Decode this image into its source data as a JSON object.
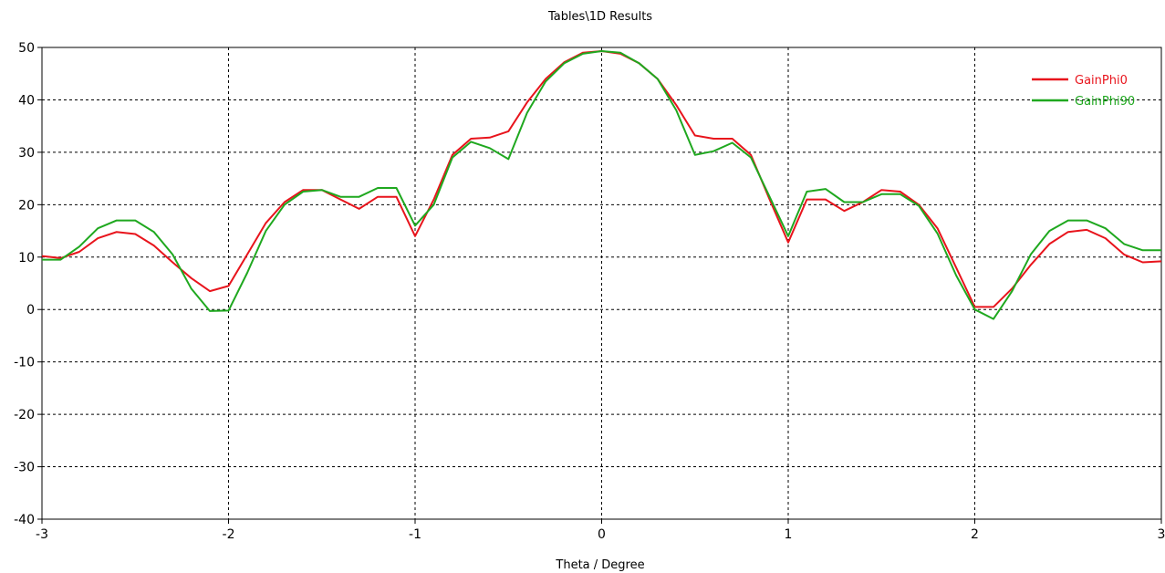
{
  "chart_data": {
    "type": "line",
    "title": "Tables\\1D Results",
    "xlabel": "Theta / Degree",
    "ylabel": "",
    "xlim": [
      -3,
      3
    ],
    "ylim": [
      -40,
      50
    ],
    "xticks": [
      -3,
      -2,
      -1,
      0,
      1,
      2,
      3
    ],
    "yticks": [
      -40,
      -30,
      -20,
      -10,
      0,
      10,
      20,
      30,
      40,
      50
    ],
    "grid": true,
    "legend": "top-right",
    "series": [
      {
        "name": "GainPhi0",
        "color": "#e8141c",
        "points": [
          [
            -3.0,
            10.2
          ],
          [
            -2.9,
            9.8
          ],
          [
            -2.8,
            11.0
          ],
          [
            -2.7,
            13.6
          ],
          [
            -2.6,
            14.8
          ],
          [
            -2.5,
            14.4
          ],
          [
            -2.4,
            12.2
          ],
          [
            -2.3,
            9.0
          ],
          [
            -2.2,
            6.0
          ],
          [
            -2.1,
            3.5
          ],
          [
            -2.0,
            4.5
          ],
          [
            -1.9,
            10.5
          ],
          [
            -1.8,
            16.5
          ],
          [
            -1.7,
            20.5
          ],
          [
            -1.6,
            22.8
          ],
          [
            -1.5,
            22.8
          ],
          [
            -1.4,
            21.0
          ],
          [
            -1.3,
            19.2
          ],
          [
            -1.2,
            21.5
          ],
          [
            -1.1,
            21.5
          ],
          [
            -1.0,
            14.0
          ],
          [
            -0.9,
            21.0
          ],
          [
            -0.8,
            29.5
          ],
          [
            -0.7,
            32.6
          ],
          [
            -0.6,
            32.8
          ],
          [
            -0.5,
            34.0
          ],
          [
            -0.4,
            39.5
          ],
          [
            -0.3,
            44.0
          ],
          [
            -0.2,
            47.2
          ],
          [
            -0.1,
            49.0
          ],
          [
            0.0,
            49.3
          ],
          [
            0.1,
            48.8
          ],
          [
            0.2,
            47.0
          ],
          [
            0.3,
            44.0
          ],
          [
            0.4,
            39.0
          ],
          [
            0.5,
            33.2
          ],
          [
            0.6,
            32.6
          ],
          [
            0.7,
            32.6
          ],
          [
            0.8,
            29.5
          ],
          [
            0.9,
            21.0
          ],
          [
            1.0,
            12.8
          ],
          [
            1.1,
            21.0
          ],
          [
            1.2,
            21.0
          ],
          [
            1.3,
            18.8
          ],
          [
            1.4,
            20.5
          ],
          [
            1.5,
            22.8
          ],
          [
            1.6,
            22.5
          ],
          [
            1.7,
            20.0
          ],
          [
            1.8,
            15.5
          ],
          [
            1.9,
            8.0
          ],
          [
            2.0,
            0.5
          ],
          [
            2.1,
            0.5
          ],
          [
            2.2,
            4.0
          ],
          [
            2.3,
            8.5
          ],
          [
            2.4,
            12.5
          ],
          [
            2.5,
            14.8
          ],
          [
            2.6,
            15.2
          ],
          [
            2.7,
            13.6
          ],
          [
            2.8,
            10.5
          ],
          [
            2.9,
            9.0
          ],
          [
            3.0,
            9.2
          ]
        ]
      },
      {
        "name": "GainPhi90",
        "color": "#1fa81f",
        "points": [
          [
            -3.0,
            9.5
          ],
          [
            -2.9,
            9.5
          ],
          [
            -2.8,
            12.0
          ],
          [
            -2.7,
            15.5
          ],
          [
            -2.6,
            17.0
          ],
          [
            -2.5,
            17.0
          ],
          [
            -2.4,
            14.8
          ],
          [
            -2.3,
            10.5
          ],
          [
            -2.2,
            4.0
          ],
          [
            -2.1,
            -0.3
          ],
          [
            -2.0,
            -0.2
          ],
          [
            -1.9,
            7.0
          ],
          [
            -1.8,
            15.0
          ],
          [
            -1.7,
            20.0
          ],
          [
            -1.6,
            22.5
          ],
          [
            -1.5,
            22.8
          ],
          [
            -1.4,
            21.5
          ],
          [
            -1.3,
            21.5
          ],
          [
            -1.2,
            23.2
          ],
          [
            -1.1,
            23.2
          ],
          [
            -1.0,
            16.0
          ],
          [
            -0.9,
            20.0
          ],
          [
            -0.8,
            29.0
          ],
          [
            -0.7,
            32.0
          ],
          [
            -0.6,
            30.8
          ],
          [
            -0.5,
            28.7
          ],
          [
            -0.4,
            37.5
          ],
          [
            -0.3,
            43.5
          ],
          [
            -0.2,
            47.0
          ],
          [
            -0.1,
            48.8
          ],
          [
            0.0,
            49.3
          ],
          [
            0.1,
            49.0
          ],
          [
            0.2,
            47.0
          ],
          [
            0.3,
            44.0
          ],
          [
            0.4,
            38.0
          ],
          [
            0.5,
            29.5
          ],
          [
            0.6,
            30.2
          ],
          [
            0.7,
            31.8
          ],
          [
            0.8,
            29.0
          ],
          [
            0.9,
            21.5
          ],
          [
            1.0,
            14.0
          ],
          [
            1.1,
            22.5
          ],
          [
            1.2,
            23.0
          ],
          [
            1.3,
            20.5
          ],
          [
            1.4,
            20.5
          ],
          [
            1.5,
            22.0
          ],
          [
            1.6,
            22.0
          ],
          [
            1.7,
            19.8
          ],
          [
            1.8,
            14.5
          ],
          [
            1.9,
            6.5
          ],
          [
            2.0,
            0.0
          ],
          [
            2.1,
            -1.8
          ],
          [
            2.2,
            3.5
          ],
          [
            2.3,
            10.5
          ],
          [
            2.4,
            15.0
          ],
          [
            2.5,
            17.0
          ],
          [
            2.6,
            17.0
          ],
          [
            2.7,
            15.5
          ],
          [
            2.8,
            12.5
          ],
          [
            2.9,
            11.3
          ],
          [
            3.0,
            11.3
          ]
        ]
      }
    ]
  }
}
